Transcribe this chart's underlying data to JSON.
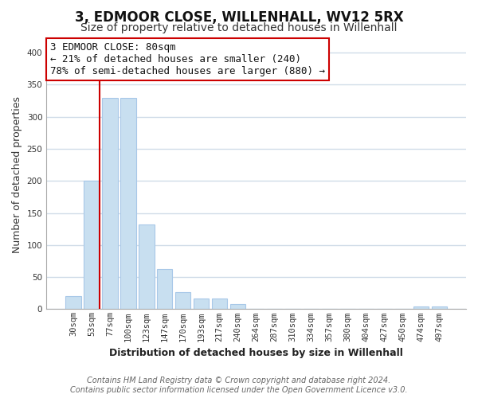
{
  "title": "3, EDMOOR CLOSE, WILLENHALL, WV12 5RX",
  "subtitle": "Size of property relative to detached houses in Willenhall",
  "xlabel": "Distribution of detached houses by size in Willenhall",
  "ylabel": "Number of detached properties",
  "bin_labels": [
    "30sqm",
    "53sqm",
    "77sqm",
    "100sqm",
    "123sqm",
    "147sqm",
    "170sqm",
    "193sqm",
    "217sqm",
    "240sqm",
    "264sqm",
    "287sqm",
    "310sqm",
    "334sqm",
    "357sqm",
    "380sqm",
    "404sqm",
    "427sqm",
    "450sqm",
    "474sqm",
    "497sqm"
  ],
  "bar_heights": [
    20,
    200,
    330,
    330,
    132,
    62,
    27,
    17,
    16,
    8,
    1,
    0,
    0,
    0,
    0,
    0,
    0,
    0,
    0,
    4,
    4
  ],
  "bar_color": "#c8dff0",
  "bar_edge_color": "#a8c8e8",
  "annotation_line1": "3 EDMOOR CLOSE: 80sqm",
  "annotation_line2": "← 21% of detached houses are smaller (240)",
  "annotation_line3": "78% of semi-detached houses are larger (880) →",
  "annotation_border_color": "#cc0000",
  "ylim": [
    0,
    420
  ],
  "yticks": [
    0,
    50,
    100,
    150,
    200,
    250,
    300,
    350,
    400
  ],
  "footer_line1": "Contains HM Land Registry data © Crown copyright and database right 2024.",
  "footer_line2": "Contains public sector information licensed under the Open Government Licence v3.0.",
  "bg_color": "#ffffff",
  "plot_bg_color": "#ffffff",
  "grid_color": "#d0dce8",
  "title_fontsize": 12,
  "subtitle_fontsize": 10,
  "axis_label_fontsize": 9,
  "tick_fontsize": 7.5,
  "annotation_fontsize": 9,
  "footer_fontsize": 7
}
